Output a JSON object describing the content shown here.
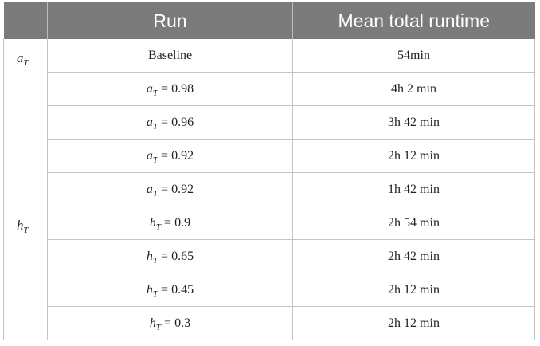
{
  "header": {
    "col1": "",
    "col2": "Run",
    "col3": "Mean total runtime"
  },
  "groups": [
    {
      "label_var": "a",
      "label_sub": "T",
      "rows": [
        {
          "run_text": "Baseline",
          "runtime": "54min"
        },
        {
          "run_var": "a",
          "run_sub": "T",
          "run_eq": " = 0.98",
          "runtime": "4h 2 min"
        },
        {
          "run_var": "a",
          "run_sub": "T",
          "run_eq": " = 0.96",
          "runtime": "3h 42 min"
        },
        {
          "run_var": "a",
          "run_sub": "T",
          "run_eq": " = 0.92",
          "runtime": "2h 12 min"
        },
        {
          "run_var": "a",
          "run_sub": "T",
          "run_eq": " = 0.92",
          "runtime": "1h 42 min"
        }
      ]
    },
    {
      "label_var": "h",
      "label_sub": "T",
      "rows": [
        {
          "run_var": "h",
          "run_sub": "T",
          "run_eq": " = 0.9",
          "runtime": "2h 54 min"
        },
        {
          "run_var": "h",
          "run_sub": "T",
          "run_eq": " = 0.65",
          "runtime": "2h 42 min"
        },
        {
          "run_var": "h",
          "run_sub": "T",
          "run_eq": " = 0.45",
          "runtime": "2h 12 min"
        },
        {
          "run_var": "h",
          "run_sub": "T",
          "run_eq": " = 0.3",
          "runtime": "2h 12 min"
        }
      ]
    }
  ]
}
